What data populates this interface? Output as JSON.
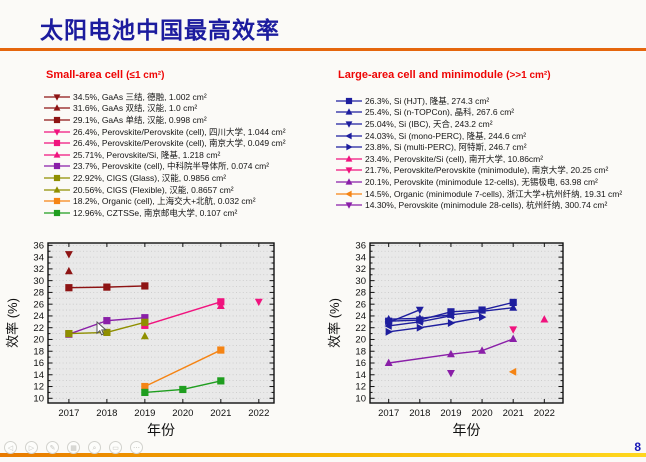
{
  "page": {
    "title": "太阳电池中国最高效率",
    "page_number": "8",
    "accent_orange": "#e5660d",
    "title_color": "#1c1c9e",
    "legend_header_color": "#ee0505",
    "footer_gradient": [
      "#e87a00",
      "#ffd71e"
    ]
  },
  "legends": {
    "small_area": {
      "title_main": "Small-area cell",
      "title_size": "(≤1 cm²)",
      "items": [
        {
          "marker": "triangle-down",
          "color": "#8e1414",
          "text": "34.5%, GaAs 三结, 德融, 1.002 cm²"
        },
        {
          "marker": "triangle-up",
          "color": "#8e1414",
          "text": "31.6%, GaAs 双结, 汉能, 1.0 cm²"
        },
        {
          "marker": "square",
          "color": "#8e1414",
          "text": "29.1%, GaAs 单结, 汉能, 0.998 cm²"
        },
        {
          "marker": "triangle-down",
          "color": "#f0137e",
          "text": "26.4%, Perovskite/Perovskite (cell), 四川大学, 1.044 cm²"
        },
        {
          "marker": "square",
          "color": "#f0137e",
          "text": "26.4%, Perovskite/Perovskite (cell), 南京大学, 0.049 cm²"
        },
        {
          "marker": "triangle-up",
          "color": "#f0137e",
          "text": "25.71%, Perovskite/Si, 隆基, 1.218 cm²"
        },
        {
          "marker": "square",
          "color": "#8a1fa8",
          "text": "23.7%, Perovskite (cell), 中科院半导体所,  0.074 cm²"
        },
        {
          "marker": "square",
          "color": "#8f8f00",
          "text": "22.92%, CIGS (Glass), 汉能, 0.9856 cm²"
        },
        {
          "marker": "triangle-up",
          "color": "#8f8f00",
          "text": "20.56%, CIGS (Flexible), 汉能, 0.8657 cm²"
        },
        {
          "marker": "square",
          "color": "#f58414",
          "text": "18.2%, Organic (cell), 上海交大+北航, 0.032 cm²"
        },
        {
          "marker": "square",
          "color": "#1f9e1f",
          "text": "12.96%, CZTSSe, 南京邮电大学, 0.107 cm²"
        }
      ]
    },
    "large_area": {
      "title_main": "Large-area cell and minimodule",
      "title_size": "(>>1 cm²)",
      "items": [
        {
          "marker": "square",
          "color": "#1e1e9e",
          "text": "26.3%, Si (HJT), 隆基, 274.3 cm²"
        },
        {
          "marker": "triangle-up",
          "color": "#1e1e9e",
          "text": "25.4%, Si (n-TOPCon), 晶科, 267.6 cm²"
        },
        {
          "marker": "triangle-down",
          "color": "#1e1e9e",
          "text": "25.04%, Si (IBC), 天合, 243.2 cm²"
        },
        {
          "marker": "triangle-left",
          "color": "#1e1e9e",
          "text": "24.03%, Si (mono-PERC), 隆基, 244.6 cm²"
        },
        {
          "marker": "triangle-right",
          "color": "#1e1e9e",
          "text": "23.8%, Si (multi-PERC), 阿特斯, 246.7 cm²"
        },
        {
          "marker": "triangle-up",
          "color": "#f0137e",
          "text": "23.4%, Perovskite/Si (cell), 南开大学, 10.86cm²"
        },
        {
          "marker": "triangle-down",
          "color": "#f0137e",
          "text": "21.7%, Perovskite/Perovskite (minimodule), 南京大学, 20.25 cm²"
        },
        {
          "marker": "triangle-up",
          "color": "#8a1fa8",
          "text": "20.1%, Perovskite (minimodule 12-cells), 无锡极电, 63.98 cm²"
        },
        {
          "marker": "triangle-left",
          "color": "#f58414",
          "text": "14.5%, Organic (minimodule 7-cells), 浙江大学+杭州纤纳, 19.31 cm²"
        },
        {
          "marker": "triangle-down",
          "color": "#8a1fa8",
          "text": "14.30%, Perovskite (minimodule 28-cells), 杭州纤纳, 300.74 cm²"
        }
      ]
    }
  },
  "chart_data": [
    {
      "type": "line",
      "title": "Small-area cell records",
      "xlabel": "年份",
      "ylabel": "效率 (%)",
      "xlim": [
        2016.45,
        2022.4
      ],
      "ylim": [
        9.2,
        36.4
      ],
      "xticks": [
        2017,
        2018,
        2019,
        2020,
        2021,
        2022
      ],
      "ytick_min": 10,
      "ytick_max": 36,
      "ytick_step": 2,
      "grid": "dotted-horizontal",
      "series": [
        {
          "name": "GaAs 三结 (德融)",
          "color": "#8e1414",
          "marker": "triangle-down",
          "points": [
            [
              2017,
              34.5
            ]
          ]
        },
        {
          "name": "GaAs 双结 (汉能)",
          "color": "#8e1414",
          "marker": "triangle-up",
          "points": [
            [
              2017,
              31.6
            ]
          ]
        },
        {
          "name": "GaAs 单结 (汉能)",
          "color": "#8e1414",
          "marker": "square",
          "points": [
            [
              2017,
              28.8
            ],
            [
              2018,
              28.9
            ],
            [
              2019,
              29.1
            ]
          ]
        },
        {
          "name": "Perovskite/Perovskite cell (四川大学)",
          "color": "#f0137e",
          "marker": "triangle-down",
          "points": [
            [
              2022,
              26.4
            ]
          ]
        },
        {
          "name": "Perovskite/Perovskite cell (南京大学)",
          "color": "#f0137e",
          "marker": "square",
          "points": [
            [
              2019,
              22.4
            ],
            [
              2021,
              26.4
            ]
          ]
        },
        {
          "name": "Perovskite/Si (隆基)",
          "color": "#f0137e",
          "marker": "triangle-up",
          "points": [
            [
              2021,
              25.71
            ]
          ]
        },
        {
          "name": "Perovskite cell (中科院半导体所)",
          "color": "#8a1fa8",
          "marker": "square",
          "points": [
            [
              2017,
              20.9
            ],
            [
              2018,
              23.2
            ],
            [
              2019,
              23.7
            ]
          ]
        },
        {
          "name": "CIGS Glass (汉能)",
          "color": "#8f8f00",
          "marker": "square",
          "points": [
            [
              2017,
              21.0
            ],
            [
              2018,
              21.2
            ],
            [
              2019,
              22.92
            ]
          ]
        },
        {
          "name": "CIGS Flexible (汉能)",
          "color": "#8f8f00",
          "marker": "triangle-up",
          "points": [
            [
              2019,
              20.56
            ]
          ]
        },
        {
          "name": "Organic cell (上海交大+北航)",
          "color": "#f58414",
          "marker": "square",
          "points": [
            [
              2019,
              12.0
            ],
            [
              2021,
              18.2
            ]
          ]
        },
        {
          "name": "CZTSSe (南京邮电大学)",
          "color": "#1f9e1f",
          "marker": "square",
          "points": [
            [
              2019,
              11.0
            ],
            [
              2020,
              11.5
            ],
            [
              2021,
              12.96
            ]
          ]
        }
      ]
    },
    {
      "type": "line",
      "title": "Large-area cell and minimodule records",
      "xlabel": "年份",
      "ylabel": "效率 (%)",
      "xlim": [
        2016.4,
        2022.6
      ],
      "ylim": [
        9.2,
        36.4
      ],
      "xticks": [
        2017,
        2018,
        2019,
        2020,
        2021,
        2022
      ],
      "ytick_min": 10,
      "ytick_max": 36,
      "ytick_step": 2,
      "grid": "dotted-horizontal",
      "series": [
        {
          "name": "Si HJT (隆基)",
          "color": "#1e1e9e",
          "marker": "square",
          "points": [
            [
              2017,
              23.1
            ],
            [
              2018,
              23.3
            ],
            [
              2019,
              24.7
            ],
            [
              2020,
              25.0
            ],
            [
              2021,
              26.3
            ]
          ]
        },
        {
          "name": "Si n-TOPCon (晶科)",
          "color": "#1e1e9e",
          "marker": "triangle-up",
          "points": [
            [
              2017,
              23.45
            ],
            [
              2018,
              23.6
            ],
            [
              2019,
              24.2
            ],
            [
              2021,
              25.4
            ]
          ]
        },
        {
          "name": "Si IBC (天合)",
          "color": "#1e1e9e",
          "marker": "triangle-down",
          "points": [
            [
              2017,
              22.9
            ],
            [
              2018,
              25.04
            ]
          ]
        },
        {
          "name": "Si mono-PERC (隆基)",
          "color": "#1e1e9e",
          "marker": "triangle-left",
          "points": [
            [
              2017,
              22.3
            ],
            [
              2018,
              23.0
            ],
            [
              2019,
              24.03
            ]
          ]
        },
        {
          "name": "Si multi-PERC (阿特斯)",
          "color": "#1e1e9e",
          "marker": "triangle-right",
          "points": [
            [
              2017,
              21.3
            ],
            [
              2018,
              22.0
            ],
            [
              2019,
              22.8
            ],
            [
              2020,
              23.8
            ]
          ]
        },
        {
          "name": "Perovskite/Si cell (南开大学)",
          "color": "#f0137e",
          "marker": "triangle-up",
          "points": [
            [
              2022,
              23.4
            ]
          ]
        },
        {
          "name": "Perovskite/Perovskite minimodule (南京大学)",
          "color": "#f0137e",
          "marker": "triangle-down",
          "points": [
            [
              2021,
              21.7
            ]
          ]
        },
        {
          "name": "Perovskite minimodule 12-cells (无锡极电)",
          "color": "#8a1fa8",
          "marker": "triangle-up",
          "points": [
            [
              2017,
              16.0
            ],
            [
              2019,
              17.5
            ],
            [
              2020,
              18.1
            ],
            [
              2021,
              20.1
            ]
          ]
        },
        {
          "name": "Organic minimodule 7-cells (浙江大学+杭州纤纳)",
          "color": "#f58414",
          "marker": "triangle-left",
          "points": [
            [
              2021,
              14.5
            ]
          ]
        },
        {
          "name": "Perovskite minimodule 28-cells (杭州纤纳)",
          "color": "#8a1fa8",
          "marker": "triangle-down",
          "points": [
            [
              2019,
              14.3
            ]
          ]
        }
      ]
    }
  ],
  "toolbar": {
    "buttons": [
      {
        "name": "previous-slide",
        "glyph": "◁"
      },
      {
        "name": "next-slide",
        "glyph": "▷"
      },
      {
        "name": "pen-tools",
        "glyph": "✎"
      },
      {
        "name": "see-all-slides",
        "glyph": "▦"
      },
      {
        "name": "zoom-slide",
        "glyph": "⌕"
      },
      {
        "name": "display-settings",
        "glyph": "▭"
      },
      {
        "name": "more-options",
        "glyph": "⋯"
      }
    ]
  }
}
